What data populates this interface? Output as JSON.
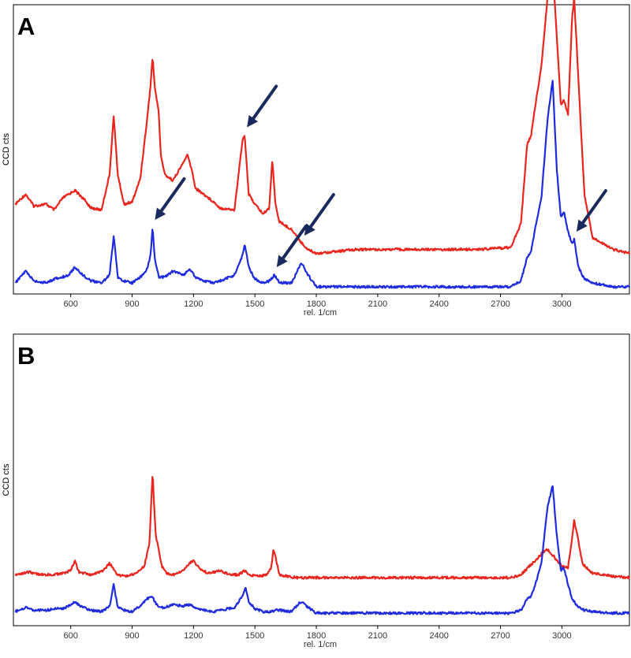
{
  "figure": {
    "panels": [
      "A",
      "B"
    ]
  },
  "colors": {
    "red": "#e8261f",
    "blue": "#1f2bdd",
    "arrow": "#1b2a5c",
    "axis": "#000000"
  },
  "chart_data": [
    {
      "type": "line",
      "panel_label": "A",
      "xlabel": "rel. 1/cm",
      "ylabel": "CCD cts",
      "xlim": [
        320,
        3330
      ],
      "xticks": [
        600,
        900,
        1200,
        1500,
        1800,
        2100,
        2400,
        2700,
        3000
      ],
      "grid": false,
      "series": [
        {
          "color": "#e8261f",
          "offset": 0.17,
          "x": [
            330,
            380,
            420,
            480,
            520,
            560,
            590,
            620,
            660,
            700,
            750,
            790,
            810,
            830,
            860,
            900,
            940,
            970,
            990,
            1000,
            1010,
            1030,
            1040,
            1060,
            1100,
            1150,
            1170,
            1190,
            1210,
            1250,
            1300,
            1330,
            1400,
            1440,
            1450,
            1470,
            1500,
            1540,
            1570,
            1585,
            1600,
            1620,
            1680,
            1710,
            1730,
            1760,
            1800,
            2000,
            2300,
            2600,
            2750,
            2800,
            2830,
            2850,
            2870,
            2900,
            2930,
            2955,
            2975,
            2995,
            3010,
            3030,
            3050,
            3060,
            3080,
            3110,
            3150,
            3250,
            3330
          ],
          "values": [
            0.25,
            0.3,
            0.24,
            0.25,
            0.22,
            0.28,
            0.3,
            0.32,
            0.28,
            0.23,
            0.22,
            0.4,
            0.7,
            0.4,
            0.25,
            0.26,
            0.38,
            0.65,
            0.85,
            1.0,
            0.85,
            0.72,
            0.5,
            0.4,
            0.37,
            0.46,
            0.5,
            0.43,
            0.33,
            0.3,
            0.26,
            0.23,
            0.22,
            0.58,
            0.6,
            0.3,
            0.25,
            0.2,
            0.23,
            0.48,
            0.25,
            0.16,
            0.12,
            0.08,
            0.05,
            0.02,
            0.0,
            0.02,
            0.02,
            0.02,
            0.03,
            0.15,
            0.55,
            0.6,
            0.75,
            0.95,
            1.3,
            1.45,
            1.1,
            0.75,
            0.78,
            0.7,
            1.2,
            1.3,
            0.9,
            0.3,
            0.08,
            0.02,
            0.0
          ]
        },
        {
          "color": "#1f2bdd",
          "offset": 0.0,
          "x": [
            330,
            380,
            420,
            480,
            520,
            560,
            590,
            620,
            660,
            700,
            750,
            790,
            810,
            830,
            860,
            900,
            940,
            970,
            990,
            1000,
            1010,
            1030,
            1060,
            1100,
            1150,
            1180,
            1210,
            1250,
            1300,
            1330,
            1400,
            1440,
            1450,
            1470,
            1500,
            1540,
            1570,
            1595,
            1620,
            1680,
            1715,
            1730,
            1760,
            1800,
            2000,
            2300,
            2600,
            2750,
            2800,
            2830,
            2850,
            2870,
            2900,
            2930,
            2955,
            2975,
            2995,
            3010,
            3030,
            3050,
            3060,
            3080,
            3110,
            3150,
            3250,
            3330
          ],
          "values": [
            0.02,
            0.08,
            0.03,
            0.02,
            0.04,
            0.05,
            0.06,
            0.1,
            0.06,
            0.03,
            0.02,
            0.06,
            0.26,
            0.05,
            0.03,
            0.02,
            0.05,
            0.08,
            0.16,
            0.3,
            0.15,
            0.05,
            0.05,
            0.08,
            0.06,
            0.09,
            0.05,
            0.03,
            0.02,
            0.03,
            0.06,
            0.16,
            0.22,
            0.1,
            0.04,
            0.02,
            0.03,
            0.06,
            0.02,
            0.02,
            0.1,
            0.12,
            0.06,
            0.0,
            0.0,
            0.0,
            0.0,
            0.0,
            0.03,
            0.15,
            0.18,
            0.3,
            0.45,
            0.85,
            1.05,
            0.6,
            0.35,
            0.38,
            0.28,
            0.22,
            0.24,
            0.1,
            0.04,
            0.02,
            0.0,
            0.0
          ]
        }
      ],
      "arrows": [
        {
          "series": 0,
          "x": 2955
        },
        {
          "series": 0,
          "x": 1450
        },
        {
          "series": 0,
          "x": 1730
        },
        {
          "series": 1,
          "x": 1000
        },
        {
          "series": 1,
          "x": 1595
        },
        {
          "series": 1,
          "x": 3060
        }
      ]
    },
    {
      "type": "line",
      "panel_label": "B",
      "xlabel": "rel. 1/cm",
      "ylabel": "CCD cts",
      "xlim": [
        320,
        3330
      ],
      "xticks": [
        600,
        900,
        1200,
        1500,
        1800,
        2100,
        2400,
        2700,
        3000
      ],
      "grid": false,
      "series": [
        {
          "color": "#e8261f",
          "offset": 0.25,
          "x": [
            330,
            400,
            450,
            500,
            560,
            600,
            620,
            640,
            700,
            760,
            790,
            800,
            830,
            870,
            920,
            960,
            985,
            1000,
            1015,
            1030,
            1045,
            1070,
            1110,
            1150,
            1165,
            1180,
            1200,
            1225,
            1270,
            1330,
            1380,
            1420,
            1450,
            1470,
            1520,
            1560,
            1580,
            1590,
            1600,
            1620,
            1700,
            1800,
            2000,
            2300,
            2600,
            2750,
            2800,
            2840,
            2870,
            2900,
            2930,
            2960,
            3000,
            3030,
            3050,
            3060,
            3075,
            3100,
            3150,
            3250,
            3330
          ],
          "values": [
            0.02,
            0.04,
            0.02,
            0.02,
            0.03,
            0.05,
            0.12,
            0.04,
            0.02,
            0.05,
            0.1,
            0.08,
            0.02,
            0.01,
            0.03,
            0.08,
            0.25,
            0.75,
            0.3,
            0.2,
            0.08,
            0.03,
            0.02,
            0.05,
            0.08,
            0.1,
            0.12,
            0.07,
            0.03,
            0.05,
            0.02,
            0.02,
            0.05,
            0.02,
            0.01,
            0.02,
            0.07,
            0.2,
            0.15,
            0.02,
            0.0,
            0.0,
            0.0,
            0.0,
            0.0,
            0.0,
            0.02,
            0.08,
            0.12,
            0.17,
            0.2,
            0.15,
            0.08,
            0.07,
            0.28,
            0.4,
            0.3,
            0.1,
            0.03,
            0.01,
            0.0
          ]
        },
        {
          "color": "#1f2bdd",
          "offset": 0.0,
          "x": [
            330,
            380,
            420,
            480,
            520,
            560,
            590,
            620,
            660,
            700,
            750,
            790,
            810,
            830,
            860,
            900,
            940,
            970,
            990,
            1000,
            1010,
            1030,
            1060,
            1100,
            1150,
            1180,
            1210,
            1250,
            1300,
            1330,
            1400,
            1440,
            1455,
            1470,
            1500,
            1540,
            1570,
            1600,
            1620,
            1680,
            1715,
            1730,
            1760,
            1800,
            2000,
            2300,
            2600,
            2750,
            2800,
            2830,
            2850,
            2870,
            2900,
            2930,
            2955,
            2975,
            2995,
            3010,
            3030,
            3050,
            3080,
            3110,
            3150,
            3250,
            3330
          ],
          "values": [
            0.01,
            0.04,
            0.02,
            0.02,
            0.03,
            0.03,
            0.05,
            0.08,
            0.04,
            0.02,
            0.01,
            0.05,
            0.2,
            0.04,
            0.02,
            0.01,
            0.05,
            0.1,
            0.11,
            0.12,
            0.08,
            0.04,
            0.04,
            0.06,
            0.05,
            0.06,
            0.04,
            0.02,
            0.01,
            0.02,
            0.04,
            0.12,
            0.18,
            0.08,
            0.03,
            0.01,
            0.01,
            0.02,
            0.02,
            0.01,
            0.07,
            0.08,
            0.04,
            0.0,
            0.0,
            0.0,
            0.0,
            0.0,
            0.02,
            0.1,
            0.12,
            0.2,
            0.35,
            0.75,
            0.9,
            0.55,
            0.3,
            0.32,
            0.2,
            0.1,
            0.04,
            0.02,
            0.01,
            0.0,
            0.0
          ]
        }
      ]
    }
  ]
}
